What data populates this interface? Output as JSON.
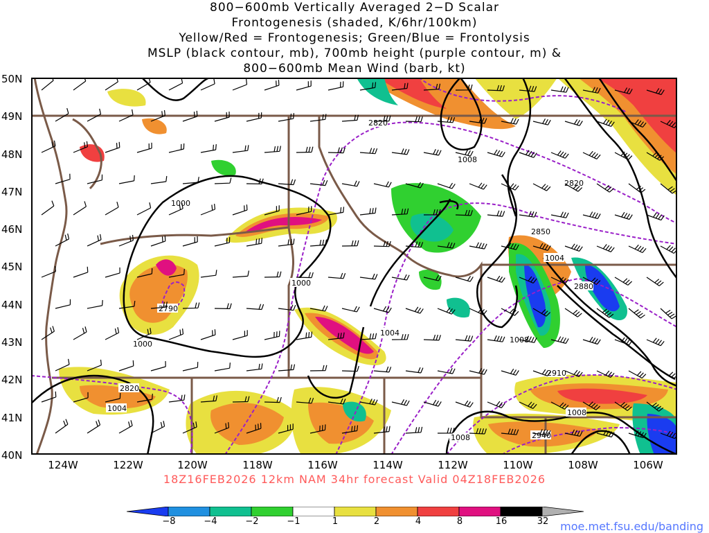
{
  "title": {
    "line1": "800−600mb Vertically Averaged 2−D Scalar",
    "line2": "Frontogenesis (shaded, K/6hr/100km)",
    "line3": "Yellow/Red = Frontogenesis;  Green/Blue = Frontolysis",
    "line4": "MSLP (black contour, mb), 700mb height (purple contour, m) &",
    "line5": "800−600mb Mean Wind (barb, kt)"
  },
  "lat_labels": [
    "50N",
    "49N",
    "48N",
    "47N",
    "46N",
    "45N",
    "44N",
    "43N",
    "42N",
    "41N",
    "40N"
  ],
  "lon_labels": [
    "124W",
    "122W",
    "120W",
    "118W",
    "116W",
    "114W",
    "112W",
    "110W",
    "108W",
    "106W"
  ],
  "footer": "18Z16FEB2026 12km NAM 34hr forecast Valid 04Z18FEB2026",
  "website": "moe.met.fsu.edu/banding",
  "colorbar": {
    "labels": [
      "−8",
      "−4",
      "−2",
      "−1",
      "1",
      "2",
      "4",
      "8",
      "16",
      "32"
    ],
    "colors": [
      "#1a3cf0",
      "#2090e0",
      "#10c090",
      "#30d030",
      "#ffffff",
      "#e8e040",
      "#f09030",
      "#f04040",
      "#e01080",
      "#000000",
      "#b0b0b0"
    ]
  },
  "contour_labels": {
    "mslp": [
      "1000",
      "1000",
      "1000",
      "1004",
      "1004",
      "1004",
      "1008",
      "1008",
      "1008",
      "1008"
    ],
    "height": [
      "2820",
      "2820",
      "2820",
      "2850",
      "2880",
      "2910",
      "2940",
      "2790"
    ]
  },
  "colors": {
    "mslp": "#000000",
    "height": "#9a20c8",
    "borders": "#7a5a48",
    "footer": "#ff5a5a",
    "website": "#5577ff"
  }
}
